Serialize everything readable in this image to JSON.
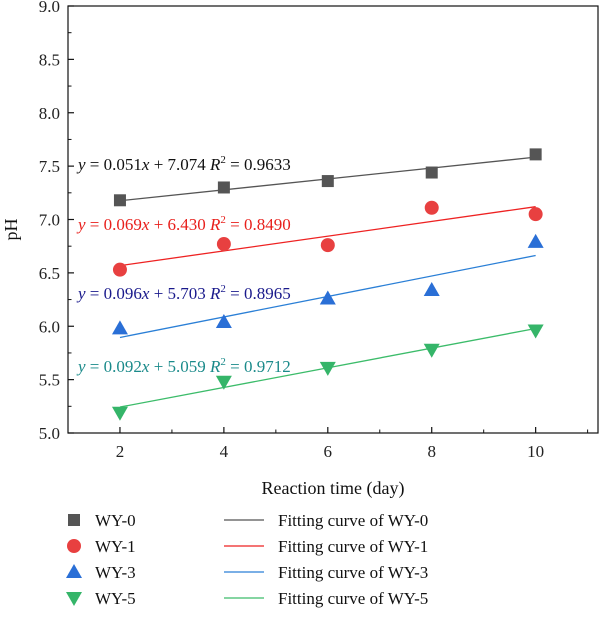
{
  "chart_data": {
    "type": "scatter",
    "xlabel": "Reaction time (day)",
    "ylabel": "pH",
    "xlim": [
      1.0,
      11.2
    ],
    "ylim": [
      5.0,
      9.0
    ],
    "x_ticks": [
      2,
      4,
      6,
      8,
      10
    ],
    "x_tick_labels": [
      "2",
      "4",
      "6",
      "8",
      "10"
    ],
    "y_ticks": [
      5.0,
      5.5,
      6.0,
      6.5,
      7.0,
      7.5,
      8.0,
      8.5,
      9.0
    ],
    "y_tick_labels": [
      "5.0",
      "5.5",
      "6.0",
      "6.5",
      "7.0",
      "7.5",
      "8.0",
      "8.5",
      "9.0"
    ],
    "grid": false,
    "legend_position": "bottom",
    "x": [
      2,
      4,
      6,
      8,
      10
    ],
    "series": [
      {
        "name": "WY-0",
        "marker": "square",
        "color": "#555555",
        "line_color": "#555555",
        "fit_name": "Fitting curve of WY-0",
        "values": [
          7.18,
          7.3,
          7.36,
          7.44,
          7.61
        ],
        "fit": {
          "slope": 0.051,
          "intercept": 7.074
        },
        "equation_parts": [
          "y",
          " = 0.051",
          "x",
          " + 7.074 ",
          "R",
          "2",
          " = 0.9633"
        ]
      },
      {
        "name": "WY-1",
        "marker": "circle",
        "color": "#e84040",
        "line_color": "#ee2222",
        "fit_name": "Fitting curve of WY-1",
        "values": [
          6.53,
          6.77,
          6.76,
          7.11,
          7.05
        ],
        "fit": {
          "slope": 0.069,
          "intercept": 6.43
        },
        "equation_parts": [
          "y",
          " = 0.069",
          "x",
          " + 6.430 ",
          "R",
          "2",
          " = 0.8490"
        ]
      },
      {
        "name": "WY-3",
        "marker": "triangle-up",
        "color": "#2a6fd6",
        "line_color": "#2a7fd6",
        "fit_name": "Fitting curve of WY-3",
        "values": [
          5.98,
          6.04,
          6.26,
          6.34,
          6.79
        ],
        "fit": {
          "slope": 0.096,
          "intercept": 5.703
        },
        "equation_parts": [
          "y",
          " = 0.096",
          "x",
          " + 5.703 ",
          "R",
          "2",
          " = 0.8965"
        ]
      },
      {
        "name": "WY-5",
        "marker": "triangle-down",
        "color": "#35b569",
        "line_color": "#3cbc6a",
        "fit_name": "Fitting curve of WY-5",
        "values": [
          5.19,
          5.48,
          5.61,
          5.78,
          5.96
        ],
        "fit": {
          "slope": 0.092,
          "intercept": 5.059
        },
        "equation_parts": [
          "y",
          " = 0.092",
          "x",
          " + 5.059 ",
          "R",
          "2",
          " = 0.9712"
        ]
      }
    ],
    "equation_colors": [
      "#111111",
      "#e8201c",
      "#1a1a8c",
      "#1a8a8a"
    ]
  }
}
